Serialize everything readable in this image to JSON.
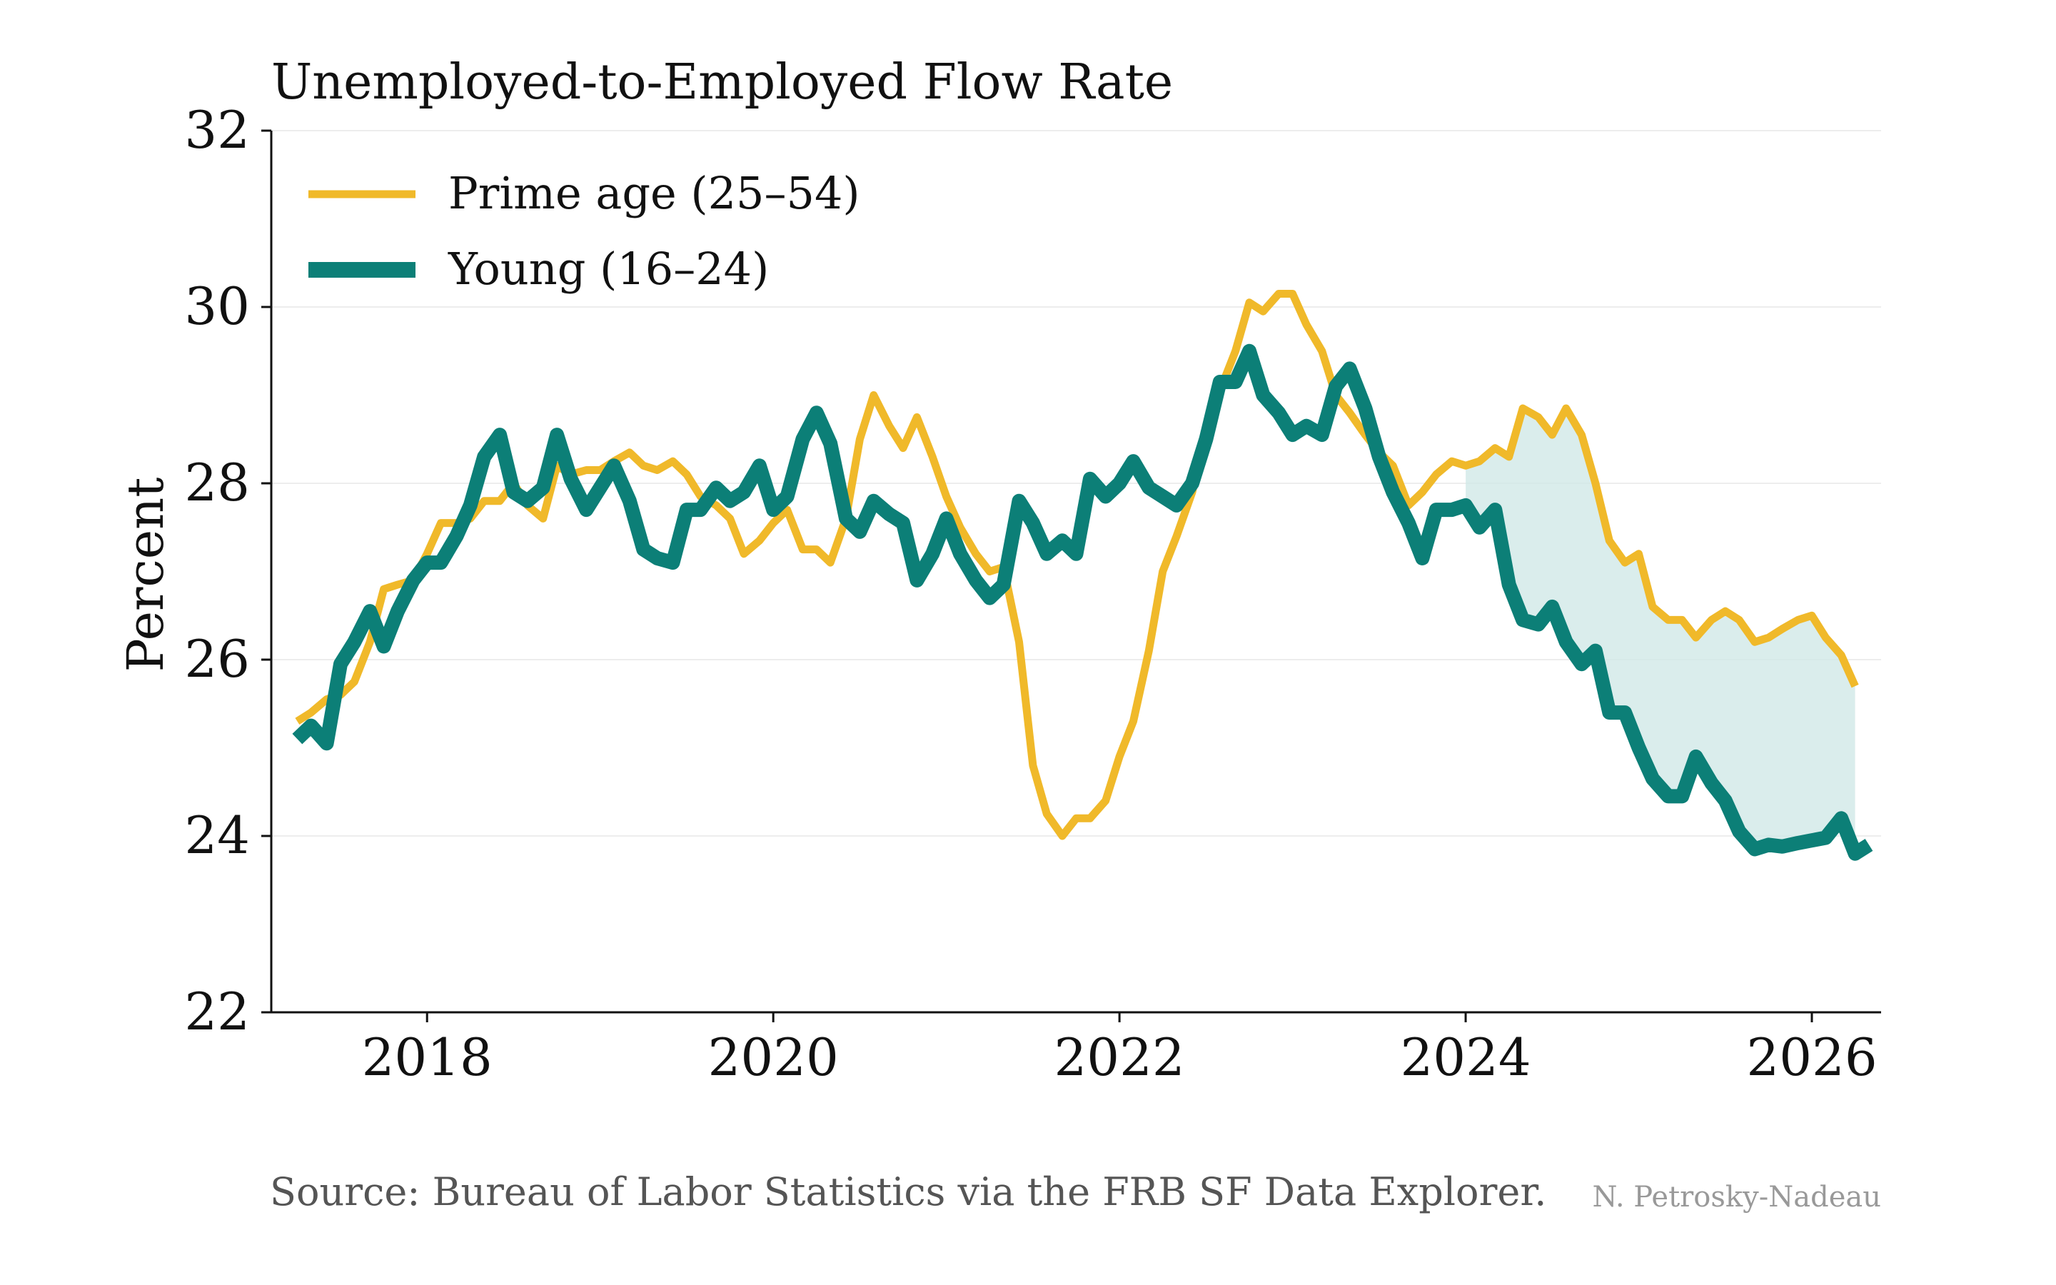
{
  "chart_data": {
    "type": "line",
    "title": "Unemployed-to-Employed Flow Rate",
    "xlabel": "",
    "ylabel": "Percent",
    "xlim": [
      2017.1,
      2026.4
    ],
    "ylim": [
      22,
      32
    ],
    "x_ticks": [
      2018,
      2020,
      2022,
      2024,
      2026
    ],
    "y_ticks": [
      22,
      24,
      26,
      28,
      30,
      32
    ],
    "grid": "horizontal",
    "legend_position": "top-left",
    "shaded_band": {
      "from_year": 2024.0,
      "color": "#cde7e5"
    },
    "series": [
      {
        "name": "Prime age (25–54)",
        "color": "#f0b92a",
        "points": [
          [
            2017.25,
            25.3
          ],
          [
            2017.33,
            25.4
          ],
          [
            2017.42,
            25.55
          ],
          [
            2017.5,
            25.6
          ],
          [
            2017.58,
            25.75
          ],
          [
            2017.67,
            26.2
          ],
          [
            2017.75,
            26.8
          ],
          [
            2017.83,
            26.85
          ],
          [
            2017.92,
            26.9
          ],
          [
            2018.0,
            27.2
          ],
          [
            2018.08,
            27.55
          ],
          [
            2018.17,
            27.55
          ],
          [
            2018.25,
            27.6
          ],
          [
            2018.33,
            27.8
          ],
          [
            2018.42,
            27.8
          ],
          [
            2018.5,
            28.0
          ],
          [
            2018.58,
            27.75
          ],
          [
            2018.67,
            27.6
          ],
          [
            2018.75,
            28.2
          ],
          [
            2018.83,
            28.1
          ],
          [
            2018.92,
            28.15
          ],
          [
            2019.0,
            28.15
          ],
          [
            2019.08,
            28.25
          ],
          [
            2019.17,
            28.35
          ],
          [
            2019.25,
            28.2
          ],
          [
            2019.33,
            28.15
          ],
          [
            2019.42,
            28.25
          ],
          [
            2019.5,
            28.1
          ],
          [
            2019.58,
            27.85
          ],
          [
            2019.67,
            27.75
          ],
          [
            2019.75,
            27.6
          ],
          [
            2019.83,
            27.2
          ],
          [
            2019.92,
            27.35
          ],
          [
            2020.0,
            27.55
          ],
          [
            2020.08,
            27.7
          ],
          [
            2020.17,
            27.25
          ],
          [
            2020.25,
            27.25
          ],
          [
            2020.33,
            27.1
          ],
          [
            2020.42,
            27.6
          ],
          [
            2020.5,
            28.5
          ],
          [
            2020.58,
            29.0
          ],
          [
            2020.67,
            28.65
          ],
          [
            2020.75,
            28.4
          ],
          [
            2020.83,
            28.75
          ],
          [
            2020.92,
            28.3
          ],
          [
            2021.0,
            27.85
          ],
          [
            2021.08,
            27.5
          ],
          [
            2021.17,
            27.2
          ],
          [
            2021.25,
            27.0
          ],
          [
            2021.33,
            27.05
          ],
          [
            2021.42,
            26.2
          ],
          [
            2021.5,
            24.8
          ],
          [
            2021.58,
            24.25
          ],
          [
            2021.67,
            24.0
          ],
          [
            2021.75,
            24.2
          ],
          [
            2021.83,
            24.2
          ],
          [
            2021.92,
            24.4
          ],
          [
            2022.0,
            24.9
          ],
          [
            2022.08,
            25.3
          ],
          [
            2022.17,
            26.1
          ],
          [
            2022.25,
            27.0
          ],
          [
            2022.33,
            27.4
          ],
          [
            2022.42,
            27.9
          ],
          [
            2022.5,
            28.6
          ],
          [
            2022.58,
            29.05
          ],
          [
            2022.67,
            29.5
          ],
          [
            2022.75,
            30.05
          ],
          [
            2022.83,
            29.95
          ],
          [
            2022.92,
            30.15
          ],
          [
            2023.0,
            30.15
          ],
          [
            2023.08,
            29.8
          ],
          [
            2023.17,
            29.5
          ],
          [
            2023.25,
            29.0
          ],
          [
            2023.33,
            28.8
          ],
          [
            2023.42,
            28.55
          ],
          [
            2023.5,
            28.35
          ],
          [
            2023.58,
            28.2
          ],
          [
            2023.67,
            27.75
          ],
          [
            2023.75,
            27.9
          ],
          [
            2023.83,
            28.1
          ],
          [
            2023.92,
            28.25
          ],
          [
            2024.0,
            28.2
          ],
          [
            2024.08,
            28.25
          ],
          [
            2024.17,
            28.4
          ],
          [
            2024.25,
            28.3
          ],
          [
            2024.33,
            28.85
          ],
          [
            2024.42,
            28.75
          ],
          [
            2024.5,
            28.55
          ],
          [
            2024.58,
            28.85
          ],
          [
            2024.67,
            28.55
          ],
          [
            2024.75,
            28.0
          ],
          [
            2024.83,
            27.35
          ],
          [
            2024.92,
            27.1
          ],
          [
            2025.0,
            27.2
          ],
          [
            2025.08,
            26.6
          ],
          [
            2025.17,
            26.45
          ],
          [
            2025.25,
            26.45
          ],
          [
            2025.33,
            26.25
          ],
          [
            2025.42,
            26.45
          ],
          [
            2025.5,
            26.55
          ],
          [
            2025.58,
            26.45
          ],
          [
            2025.67,
            26.2
          ],
          [
            2025.75,
            26.25
          ],
          [
            2025.83,
            26.35
          ],
          [
            2025.92,
            26.45
          ],
          [
            2026.0,
            26.5
          ],
          [
            2026.08,
            26.25
          ],
          [
            2026.17,
            26.05
          ],
          [
            2026.25,
            25.7
          ]
        ]
      },
      {
        "name": "Young (16–24)",
        "color": "#0c7f77",
        "points": [
          [
            2017.25,
            25.1
          ],
          [
            2017.33,
            25.25
          ],
          [
            2017.42,
            25.05
          ],
          [
            2017.5,
            25.95
          ],
          [
            2017.58,
            26.2
          ],
          [
            2017.67,
            26.55
          ],
          [
            2017.75,
            26.15
          ],
          [
            2017.83,
            26.55
          ],
          [
            2017.92,
            26.9
          ],
          [
            2018.0,
            27.1
          ],
          [
            2018.08,
            27.1
          ],
          [
            2018.17,
            27.4
          ],
          [
            2018.25,
            27.75
          ],
          [
            2018.33,
            28.3
          ],
          [
            2018.42,
            28.55
          ],
          [
            2018.5,
            27.9
          ],
          [
            2018.58,
            27.8
          ],
          [
            2018.67,
            27.95
          ],
          [
            2018.75,
            28.55
          ],
          [
            2018.83,
            28.05
          ],
          [
            2018.92,
            27.7
          ],
          [
            2019.0,
            27.95
          ],
          [
            2019.08,
            28.2
          ],
          [
            2019.17,
            27.8
          ],
          [
            2019.25,
            27.25
          ],
          [
            2019.33,
            27.15
          ],
          [
            2019.42,
            27.1
          ],
          [
            2019.5,
            27.7
          ],
          [
            2019.58,
            27.7
          ],
          [
            2019.67,
            27.95
          ],
          [
            2019.75,
            27.8
          ],
          [
            2019.83,
            27.9
          ],
          [
            2019.92,
            28.2
          ],
          [
            2020.0,
            27.7
          ],
          [
            2020.08,
            27.85
          ],
          [
            2020.17,
            28.5
          ],
          [
            2020.25,
            28.8
          ],
          [
            2020.33,
            28.45
          ],
          [
            2020.42,
            27.6
          ],
          [
            2020.5,
            27.45
          ],
          [
            2020.58,
            27.8
          ],
          [
            2020.67,
            27.65
          ],
          [
            2020.75,
            27.55
          ],
          [
            2020.83,
            26.9
          ],
          [
            2020.92,
            27.2
          ],
          [
            2021.0,
            27.6
          ],
          [
            2021.08,
            27.2
          ],
          [
            2021.17,
            26.9
          ],
          [
            2021.25,
            26.7
          ],
          [
            2021.33,
            26.85
          ],
          [
            2021.42,
            27.8
          ],
          [
            2021.5,
            27.55
          ],
          [
            2021.58,
            27.2
          ],
          [
            2021.67,
            27.35
          ],
          [
            2021.75,
            27.2
          ],
          [
            2021.83,
            28.05
          ],
          [
            2021.92,
            27.85
          ],
          [
            2022.0,
            28.0
          ],
          [
            2022.08,
            28.25
          ],
          [
            2022.17,
            27.95
          ],
          [
            2022.25,
            27.85
          ],
          [
            2022.33,
            27.75
          ],
          [
            2022.42,
            28.0
          ],
          [
            2022.5,
            28.5
          ],
          [
            2022.58,
            29.15
          ],
          [
            2022.67,
            29.15
          ],
          [
            2022.75,
            29.5
          ],
          [
            2022.83,
            29.0
          ],
          [
            2022.92,
            28.8
          ],
          [
            2023.0,
            28.55
          ],
          [
            2023.08,
            28.65
          ],
          [
            2023.17,
            28.55
          ],
          [
            2023.25,
            29.1
          ],
          [
            2023.33,
            29.3
          ],
          [
            2023.42,
            28.85
          ],
          [
            2023.5,
            28.3
          ],
          [
            2023.58,
            27.9
          ],
          [
            2023.67,
            27.55
          ],
          [
            2023.75,
            27.15
          ],
          [
            2023.83,
            27.7
          ],
          [
            2023.92,
            27.7
          ],
          [
            2024.0,
            27.75
          ],
          [
            2024.08,
            27.5
          ],
          [
            2024.17,
            27.7
          ],
          [
            2024.25,
            26.85
          ],
          [
            2024.33,
            26.45
          ],
          [
            2024.42,
            26.4
          ],
          [
            2024.5,
            26.6
          ],
          [
            2024.58,
            26.2
          ],
          [
            2024.67,
            25.95
          ],
          [
            2024.75,
            26.1
          ],
          [
            2024.83,
            25.4
          ],
          [
            2024.92,
            25.4
          ],
          [
            2025.0,
            25.0
          ],
          [
            2025.08,
            24.65
          ],
          [
            2025.17,
            24.45
          ],
          [
            2025.25,
            24.45
          ],
          [
            2025.33,
            24.9
          ],
          [
            2025.42,
            24.6
          ],
          [
            2025.5,
            24.4
          ],
          [
            2025.58,
            24.05
          ],
          [
            2025.67,
            23.85
          ],
          [
            2025.75,
            23.9
          ],
          [
            2025.83,
            23.88
          ],
          [
            2025.92,
            23.92
          ],
          [
            2026.0,
            23.95
          ],
          [
            2026.08,
            23.98
          ],
          [
            2026.17,
            24.2
          ],
          [
            2026.25,
            23.8
          ],
          [
            2026.33,
            23.9
          ]
        ]
      }
    ]
  },
  "footer": {
    "source": "Source: Bureau of Labor Statistics via the FRB SF Data Explorer.",
    "credit": "N. Petrosky-Nadeau"
  }
}
